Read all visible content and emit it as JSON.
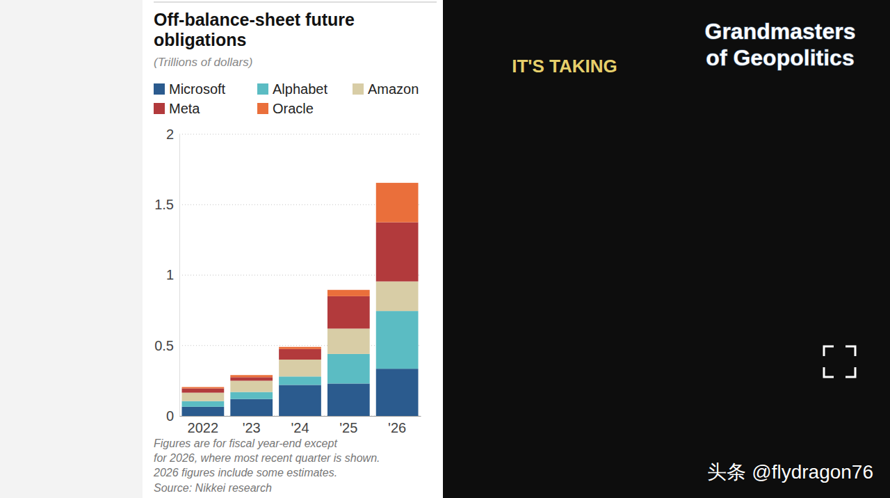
{
  "chart_data": {
    "type": "bar",
    "stacked": true,
    "grid": true,
    "legend": "top",
    "title": "Off-balance-sheet future obligations",
    "subtitle": "(Trillions of dollars)",
    "categories": [
      "2022",
      "'23",
      "'24",
      "'25",
      "'26"
    ],
    "series": [
      {
        "name": "Microsoft",
        "color": "#2b5b8e",
        "values": [
          0.065,
          0.12,
          0.22,
          0.23,
          0.335
        ]
      },
      {
        "name": "Alphabet",
        "color": "#5bbcc3",
        "values": [
          0.04,
          0.05,
          0.06,
          0.21,
          0.41
        ]
      },
      {
        "name": "Amazon",
        "color": "#d8cda6",
        "values": [
          0.06,
          0.08,
          0.12,
          0.18,
          0.21
        ]
      },
      {
        "name": "Meta",
        "color": "#b23a3c",
        "values": [
          0.03,
          0.025,
          0.075,
          0.23,
          0.42
        ]
      },
      {
        "name": "Oracle",
        "color": "#ea6f3b",
        "values": [
          0.01,
          0.015,
          0.015,
          0.045,
          0.28
        ]
      }
    ],
    "ylim": [
      0,
      2
    ],
    "yticks": [
      0,
      0.5,
      1,
      1.5,
      2
    ],
    "notes": [
      "Figures are for fiscal year-end except",
      "for 2026, where most recent quarter is shown.",
      "2026 figures include some estimates."
    ],
    "source": "Source: Nikkei research"
  },
  "page": {
    "caption": "IT'S TAKING",
    "channel": "Grandmasters of Geopolitics",
    "watermark": "头条 @flydragon76"
  }
}
